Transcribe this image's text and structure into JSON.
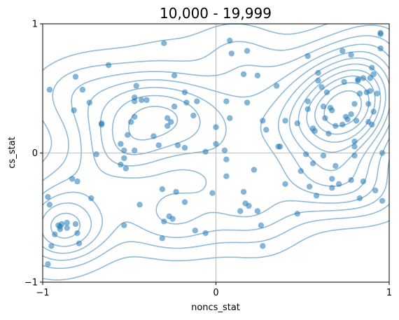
{
  "chart_data": {
    "type": "scatter",
    "title": "10,000 - 19,999",
    "xlabel": "noncs_stat",
    "ylabel": "cs_stat",
    "xlim": [
      -1,
      1
    ],
    "ylim": [
      -1,
      1
    ],
    "xticks": [
      {
        "value": -1,
        "label": "−1"
      },
      {
        "value": 0,
        "label": "0"
      },
      {
        "value": 1,
        "label": "1"
      }
    ],
    "yticks": [
      {
        "value": -1,
        "label": "−1"
      },
      {
        "value": 0,
        "label": "0"
      },
      {
        "value": 1,
        "label": "1"
      }
    ],
    "grid": false,
    "reference_lines": {
      "x": 0,
      "y": 0
    },
    "point_color": "#1f77b4",
    "contour_color": "#1f77b4",
    "overlay": "kde-contour",
    "points": [
      [
        -0.96,
        0.49
      ],
      [
        -0.81,
        0.59
      ],
      [
        -0.77,
        0.49
      ],
      [
        -0.82,
        0.33
      ],
      [
        -0.73,
        0.39
      ],
      [
        -0.66,
        0.22
      ],
      [
        -0.62,
        0.68
      ],
      [
        -0.55,
        0.07
      ],
      [
        -0.51,
        0.14
      ],
      [
        -0.49,
        0.24
      ],
      [
        -0.47,
        0.43
      ],
      [
        -0.46,
        0.52
      ],
      [
        -0.47,
        0.4
      ],
      [
        -0.43,
        0.41
      ],
      [
        -0.4,
        0.41
      ],
      [
        -0.47,
        0.28
      ],
      [
        -0.36,
        0.13
      ],
      [
        -0.33,
        0.06
      ],
      [
        -0.3,
        0.85
      ],
      [
        -0.28,
        0.21
      ],
      [
        -0.28,
        0.27
      ],
      [
        -0.26,
        0.24
      ],
      [
        -0.24,
        0.36
      ],
      [
        -0.24,
        0.6
      ],
      [
        -0.22,
        0.06
      ],
      [
        -0.18,
        0.47
      ],
      [
        -0.17,
        0.39
      ],
      [
        -0.13,
        0.29
      ],
      [
        -0.11,
        0.4
      ],
      [
        -0.18,
        0.04
      ],
      [
        -0.06,
        0.01
      ],
      [
        -0.66,
        0.23
      ],
      [
        -0.53,
        0.02
      ],
      [
        -0.53,
        -0.04
      ],
      [
        -0.52,
        -0.12
      ],
      [
        -0.55,
        -0.09
      ],
      [
        -0.47,
        0.02
      ],
      [
        -0.69,
        -0.01
      ],
      [
        -0.83,
        -0.2
      ],
      [
        -0.8,
        -0.22
      ],
      [
        -0.72,
        -0.35
      ],
      [
        -0.97,
        -0.34
      ],
      [
        -0.96,
        -0.4
      ],
      [
        -0.89,
        -0.55
      ],
      [
        -0.86,
        -0.54
      ],
      [
        -0.81,
        -0.55
      ],
      [
        -0.8,
        -0.62
      ],
      [
        -0.79,
        -0.7
      ],
      [
        -0.93,
        -0.63
      ],
      [
        -0.95,
        -0.72
      ],
      [
        -0.91,
        -0.56
      ],
      [
        -0.9,
        -0.57
      ],
      [
        -0.9,
        -0.59
      ],
      [
        -0.86,
        -0.58
      ],
      [
        -0.97,
        -0.86
      ],
      [
        -0.53,
        -0.56
      ],
      [
        -0.44,
        -0.4
      ],
      [
        -0.31,
        -0.28
      ],
      [
        -0.27,
        -0.49
      ],
      [
        -0.25,
        -0.51
      ],
      [
        -0.23,
        -0.3
      ],
      [
        -0.3,
        -0.53
      ],
      [
        -0.31,
        -0.66
      ],
      [
        -0.18,
        -0.38
      ],
      [
        -0.12,
        -0.6
      ],
      [
        -0.06,
        -0.62
      ],
      [
        -0.02,
        -0.31
      ],
      [
        0.0,
        0.2
      ],
      [
        0.0,
        0.07
      ],
      [
        0.05,
        0.02
      ],
      [
        0.06,
        -0.05
      ],
      [
        0.06,
        0.4
      ],
      [
        0.08,
        0.27
      ],
      [
        0.08,
        0.87
      ],
      [
        0.09,
        0.77
      ],
      [
        0.14,
        -0.45
      ],
      [
        0.16,
        -0.3
      ],
      [
        0.16,
        0.61
      ],
      [
        0.17,
        -0.39
      ],
      [
        0.18,
        0.39
      ],
      [
        0.18,
        0.79
      ],
      [
        0.19,
        -0.41
      ],
      [
        0.22,
        -0.13
      ],
      [
        0.24,
        0.6
      ],
      [
        0.24,
        -0.45
      ],
      [
        0.26,
        -0.56
      ],
      [
        0.27,
        0.25
      ],
      [
        0.27,
        -0.72
      ],
      [
        0.29,
        0.18
      ],
      [
        0.06,
        -0.18
      ],
      [
        0.36,
        0.05
      ],
      [
        0.35,
        0.52
      ],
      [
        0.37,
        0.05
      ],
      [
        0.4,
        -0.24
      ],
      [
        0.4,
        0.25
      ],
      [
        0.47,
        -0.47
      ],
      [
        0.47,
        0.23
      ],
      [
        0.49,
        -0.14
      ],
      [
        0.52,
        -0.01
      ],
      [
        0.53,
        0.34
      ],
      [
        0.53,
        0.4
      ],
      [
        0.53,
        0.75
      ],
      [
        0.54,
        -0.26
      ],
      [
        0.56,
        -0.08
      ],
      [
        0.56,
        0.19
      ],
      [
        0.57,
        0.17
      ],
      [
        0.58,
        -0.33
      ],
      [
        0.59,
        0.56
      ],
      [
        0.59,
        0.62
      ],
      [
        0.61,
        0.51
      ],
      [
        0.62,
        0.36
      ],
      [
        0.62,
        -0.02
      ],
      [
        0.63,
        0.27
      ],
      [
        0.64,
        0.47
      ],
      [
        0.65,
        0.15
      ],
      [
        0.66,
        0.35
      ],
      [
        0.67,
        0.33
      ],
      [
        0.67,
        -0.2
      ],
      [
        0.67,
        -0.27
      ],
      [
        0.69,
        0.21
      ],
      [
        0.69,
        -0.1
      ],
      [
        0.71,
        -0.24
      ],
      [
        0.73,
        0.79
      ],
      [
        0.73,
        0.22
      ],
      [
        0.74,
        0.55
      ],
      [
        0.75,
        0.28
      ],
      [
        0.76,
        0.26
      ],
      [
        0.78,
        0.76
      ],
      [
        0.78,
        -0.21
      ],
      [
        0.78,
        0.3
      ],
      [
        0.8,
        0.05
      ],
      [
        0.8,
        0.09
      ],
      [
        0.8,
        -0.02
      ],
      [
        0.8,
        0.38
      ],
      [
        0.81,
        0.25
      ],
      [
        0.82,
        0.56
      ],
      [
        0.82,
        0.57
      ],
      [
        0.83,
        0.46
      ],
      [
        0.83,
        -0.35
      ],
      [
        0.85,
        -0.22
      ],
      [
        0.85,
        0.58
      ],
      [
        0.87,
        0.47
      ],
      [
        0.88,
        0.24
      ],
      [
        0.88,
        0.38
      ],
      [
        0.89,
        0.48
      ],
      [
        0.89,
        0.58
      ],
      [
        0.9,
        0.22
      ],
      [
        0.9,
        0.66
      ],
      [
        0.91,
        0.61
      ],
      [
        0.91,
        0.32
      ],
      [
        0.92,
        -0.29
      ],
      [
        0.93,
        0.46
      ],
      [
        0.95,
        0.93
      ],
      [
        0.95,
        0.81
      ],
      [
        0.95,
        0.92
      ],
      [
        0.96,
        0.0
      ],
      [
        0.96,
        -0.37
      ]
    ]
  }
}
